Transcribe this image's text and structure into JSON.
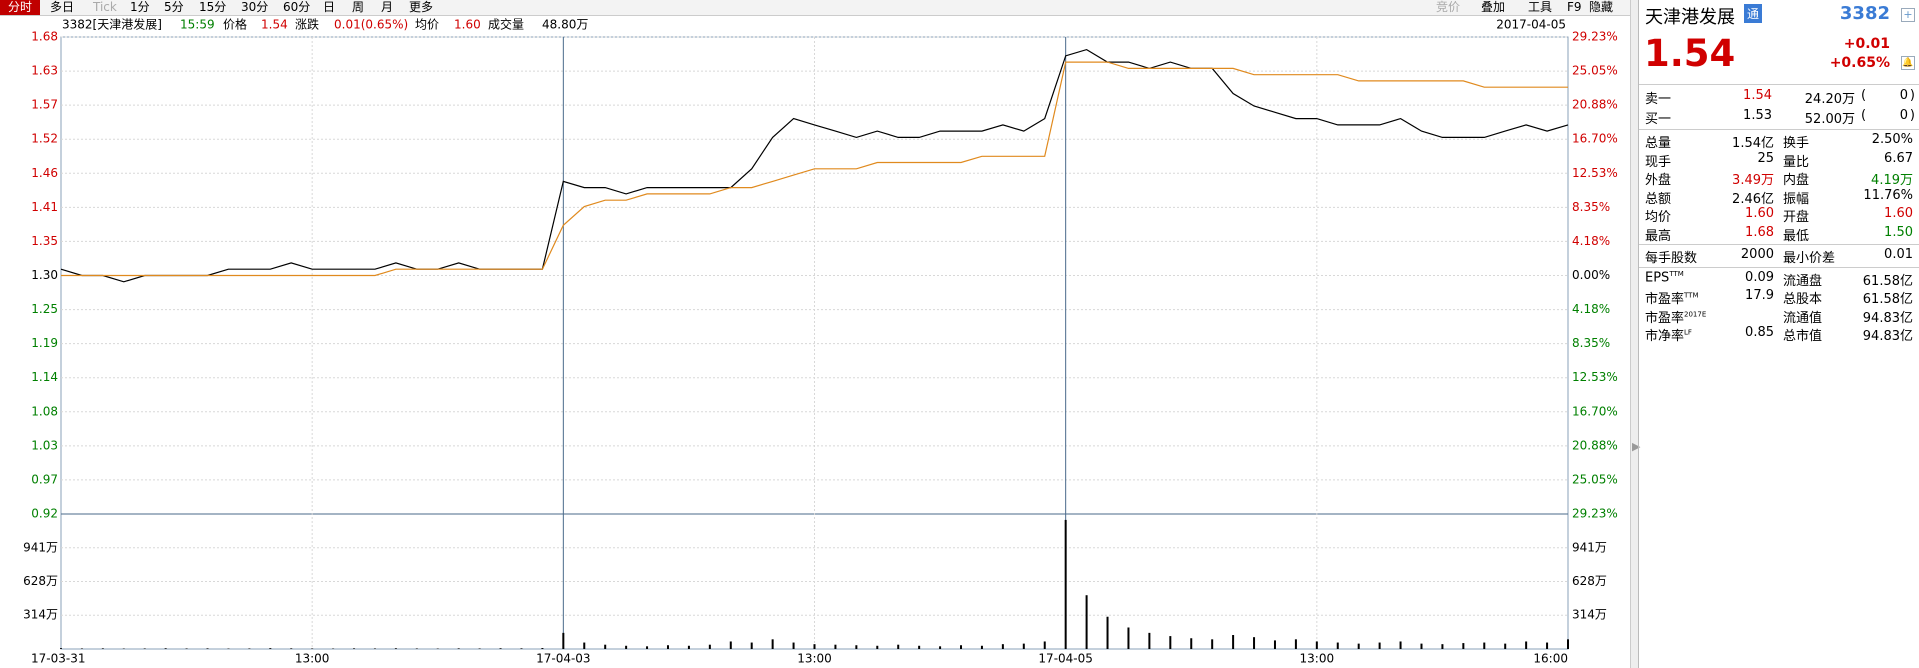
{
  "toolbar": {
    "tabs": [
      "分时",
      "多日",
      "Tick",
      "1分",
      "5分",
      "15分",
      "30分",
      "60分",
      "日",
      "周",
      "月",
      "更多"
    ],
    "tools": [
      "竞价",
      "叠加",
      "工具",
      "F9",
      "隐藏"
    ]
  },
  "info": {
    "stock": "3382[天津港发展]",
    "time": "15:59",
    "price_label": "价格",
    "price": "1.54",
    "change_label": "涨跌",
    "change": "0.01(0.65%)",
    "avg_label": "均价",
    "avg": "1.60",
    "vol_label": "成交量",
    "vol": "48.80万",
    "date": "2017-04-05"
  },
  "chart_data": [
    {
      "type": "line",
      "x": [
        0,
        10,
        20,
        30,
        40,
        50,
        60,
        70,
        80,
        90,
        100,
        110,
        120,
        130,
        140,
        150,
        160,
        170,
        180,
        190,
        200,
        210,
        220,
        230,
        240,
        250,
        260,
        270,
        280,
        290,
        300,
        310,
        320,
        330,
        340,
        350,
        360,
        370,
        380,
        390,
        400,
        410,
        420,
        430,
        440,
        450,
        460,
        470,
        480,
        490,
        500,
        510,
        520,
        530,
        540,
        550,
        560,
        570,
        580,
        590,
        600,
        610,
        620,
        630,
        640,
        650,
        660,
        670,
        680,
        690,
        700,
        710,
        720
      ],
      "series": [
        {
          "name": "价格",
          "color": "#000000",
          "values": [
            1.31,
            1.3,
            1.3,
            1.29,
            1.3,
            1.3,
            1.3,
            1.3,
            1.31,
            1.31,
            1.31,
            1.32,
            1.31,
            1.31,
            1.31,
            1.31,
            1.32,
            1.31,
            1.31,
            1.32,
            1.31,
            1.31,
            1.31,
            1.31,
            1.45,
            1.44,
            1.44,
            1.43,
            1.44,
            1.44,
            1.44,
            1.44,
            1.44,
            1.47,
            1.52,
            1.55,
            1.54,
            1.53,
            1.52,
            1.53,
            1.52,
            1.52,
            1.53,
            1.53,
            1.53,
            1.54,
            1.53,
            1.55,
            1.65,
            1.66,
            1.64,
            1.64,
            1.63,
            1.64,
            1.63,
            1.63,
            1.59,
            1.57,
            1.56,
            1.55,
            1.55,
            1.54,
            1.54,
            1.54,
            1.55,
            1.53,
            1.52,
            1.52,
            1.52,
            1.53,
            1.54,
            1.53,
            1.54
          ]
        },
        {
          "name": "均价",
          "color": "#e08a1e",
          "values": [
            1.3,
            1.3,
            1.3,
            1.3,
            1.3,
            1.3,
            1.3,
            1.3,
            1.3,
            1.3,
            1.3,
            1.3,
            1.3,
            1.3,
            1.3,
            1.3,
            1.31,
            1.31,
            1.31,
            1.31,
            1.31,
            1.31,
            1.31,
            1.31,
            1.38,
            1.41,
            1.42,
            1.42,
            1.43,
            1.43,
            1.43,
            1.43,
            1.44,
            1.44,
            1.45,
            1.46,
            1.47,
            1.47,
            1.47,
            1.48,
            1.48,
            1.48,
            1.48,
            1.48,
            1.49,
            1.49,
            1.49,
            1.49,
            1.64,
            1.64,
            1.64,
            1.63,
            1.63,
            1.63,
            1.63,
            1.63,
            1.63,
            1.62,
            1.62,
            1.62,
            1.62,
            1.62,
            1.61,
            1.61,
            1.61,
            1.61,
            1.61,
            1.61,
            1.6,
            1.6,
            1.6,
            1.6,
            1.6
          ]
        }
      ],
      "xlim": [
        0,
        720
      ],
      "xticks": [
        {
          "value": 0,
          "label": "17-03-31"
        },
        {
          "value": 120,
          "label": "13:00"
        },
        {
          "value": 240,
          "label": "17-04-03"
        },
        {
          "value": 360,
          "label": "13:00"
        },
        {
          "value": 480,
          "label": "17-04-05"
        },
        {
          "value": 600,
          "label": "13:00"
        },
        {
          "value": 720,
          "label": "16:00"
        }
      ],
      "ylim": [
        0.92,
        1.68
      ],
      "yticks": [
        {
          "value": 1.68,
          "label": "1.68"
        },
        {
          "value": 1.6257,
          "label": "1.63"
        },
        {
          "value": 1.5714,
          "label": "1.57"
        },
        {
          "value": 1.5171,
          "label": "1.52"
        },
        {
          "value": 1.4629,
          "label": "1.46"
        },
        {
          "value": 1.4086,
          "label": "1.41"
        },
        {
          "value": 1.3543,
          "label": "1.35"
        },
        {
          "value": 1.3,
          "label": "1.30"
        },
        {
          "value": 1.2457,
          "label": "1.25"
        },
        {
          "value": 1.1914,
          "label": "1.19"
        },
        {
          "value": 1.1371,
          "label": "1.14"
        },
        {
          "value": 1.0829,
          "label": "1.08"
        },
        {
          "value": 1.0286,
          "label": "1.03"
        },
        {
          "value": 0.9743,
          "label": "0.97"
        },
        {
          "value": 0.92,
          "label": "0.92"
        }
      ],
      "y2lim": [
        -29.23,
        29.23
      ],
      "y2ticks": [
        {
          "value": 29.23,
          "label": "29.23%"
        },
        {
          "value": 25.05,
          "label": "25.05%"
        },
        {
          "value": 20.88,
          "label": "20.88%"
        },
        {
          "value": 16.7,
          "label": "16.70%"
        },
        {
          "value": 12.53,
          "label": "12.53%"
        },
        {
          "value": 8.35,
          "label": "8.35%"
        },
        {
          "value": 4.18,
          "label": "4.18%"
        },
        {
          "value": 0,
          "label": "0.00%"
        },
        {
          "value": -4.18,
          "label": "4.18%"
        },
        {
          "value": -8.35,
          "label": "8.35%"
        },
        {
          "value": -12.53,
          "label": "12.53%"
        },
        {
          "value": -16.7,
          "label": "16.70%"
        },
        {
          "value": -20.88,
          "label": "20.88%"
        },
        {
          "value": -25.05,
          "label": "25.05%"
        },
        {
          "value": -29.23,
          "label": "29.23%"
        }
      ],
      "grid": true
    },
    {
      "type": "bar",
      "color": "#000000",
      "x": [
        0,
        10,
        20,
        30,
        40,
        50,
        60,
        70,
        80,
        90,
        100,
        110,
        120,
        130,
        140,
        150,
        160,
        170,
        180,
        190,
        200,
        210,
        220,
        230,
        240,
        250,
        260,
        270,
        280,
        290,
        300,
        310,
        320,
        330,
        340,
        350,
        360,
        370,
        380,
        390,
        400,
        410,
        420,
        430,
        440,
        450,
        460,
        470,
        480,
        490,
        500,
        510,
        520,
        530,
        540,
        550,
        560,
        570,
        580,
        590,
        600,
        610,
        620,
        630,
        640,
        650,
        660,
        670,
        680,
        690,
        700,
        710,
        720
      ],
      "values": [
        8,
        5,
        6,
        4,
        5,
        7,
        5,
        6,
        4,
        5,
        8,
        6,
        5,
        4,
        6,
        5,
        7,
        5,
        4,
        6,
        5,
        7,
        6,
        9,
        150,
        60,
        40,
        30,
        25,
        35,
        30,
        40,
        70,
        60,
        90,
        60,
        45,
        40,
        35,
        30,
        40,
        30,
        25,
        35,
        30,
        45,
        50,
        70,
        1200,
        500,
        300,
        200,
        150,
        120,
        100,
        90,
        130,
        110,
        80,
        90,
        70,
        60,
        50,
        60,
        70,
        50,
        45,
        55,
        60,
        50,
        70,
        60,
        90
      ],
      "xlim": [
        0,
        720
      ],
      "ylim": [
        0,
        1255
      ],
      "yticks": [
        {
          "value": 941,
          "label": "941万"
        },
        {
          "value": 628,
          "label": "628万"
        },
        {
          "value": 314,
          "label": "314万"
        }
      ],
      "grid": true
    }
  ],
  "panel": {
    "name": "天津港发展",
    "badge": "通",
    "code": "3382",
    "price": "1.54",
    "change": "+0.01",
    "change_pct": "+0.65%",
    "order_book": [
      {
        "label": "卖一",
        "price": "1.54",
        "volume": "24.20万",
        "count": "0"
      },
      {
        "label": "买一",
        "price": "1.53",
        "volume": "52.00万",
        "count": "0"
      }
    ],
    "stats": [
      [
        {
          "label": "总量",
          "value": "1.54亿"
        },
        {
          "label": "换手",
          "value": "2.50%"
        }
      ],
      [
        {
          "label": "现手",
          "value": "25"
        },
        {
          "label": "量比",
          "value": "6.67"
        }
      ],
      [
        {
          "label": "外盘",
          "value": "3.49万",
          "color": "#d00000"
        },
        {
          "label": "内盘",
          "value": "4.19万",
          "color": "#008000"
        }
      ],
      [
        {
          "label": "总额",
          "value": "2.46亿"
        },
        {
          "label": "振幅",
          "value": "11.76%"
        }
      ],
      [
        {
          "label": "均价",
          "value": "1.60",
          "color": "#d00000"
        },
        {
          "label": "开盘",
          "value": "1.60",
          "color": "#d00000"
        }
      ],
      [
        {
          "label": "最高",
          "value": "1.68",
          "color": "#d00000"
        },
        {
          "label": "最低",
          "value": "1.50",
          "color": "#008000"
        }
      ]
    ],
    "lot": [
      [
        {
          "label": "每手股数",
          "value": "2000"
        },
        {
          "label": "最小价差",
          "value": "0.01"
        }
      ]
    ],
    "fundamentals": [
      [
        {
          "label": "EPS",
          "sup": "TTM",
          "value": "0.09"
        },
        {
          "label": "流通盘",
          "value": "61.58亿"
        }
      ],
      [
        {
          "label": "市盈率",
          "sup": "TTM",
          "value": "17.9"
        },
        {
          "label": "总股本",
          "value": "61.58亿"
        }
      ],
      [
        {
          "label": "市盈率",
          "sup": "2017E"
        },
        {
          "label": "流通值",
          "value": "94.83亿"
        }
      ],
      [
        {
          "label": "市净率",
          "sup": "LF",
          "value": "0.85"
        },
        {
          "label": "总市值",
          "value": "94.83亿"
        }
      ]
    ]
  }
}
